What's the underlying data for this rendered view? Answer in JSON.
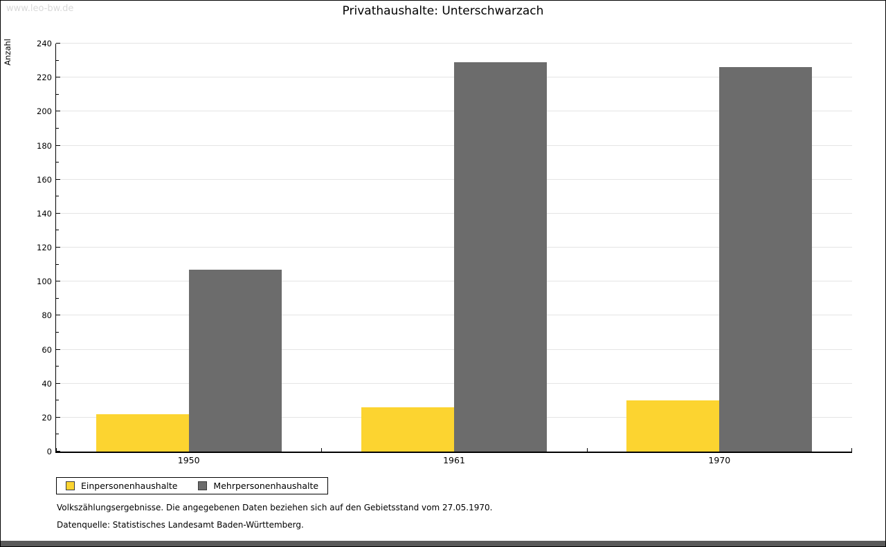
{
  "watermark": "www.leo-bw.de",
  "chart_data": {
    "type": "bar",
    "title": "Privathaushalte: Unterschwarzach",
    "ylabel": "Anzahl",
    "xlabel": "",
    "categories": [
      "1950",
      "1961",
      "1970"
    ],
    "series": [
      {
        "name": "Einpersonenhaushalte",
        "color": "#fcd430",
        "values": [
          22,
          26,
          30
        ]
      },
      {
        "name": "Mehrpersonenhaushalte",
        "color": "#6c6c6c",
        "values": [
          107,
          229,
          226
        ]
      }
    ],
    "ylim": [
      0,
      240
    ],
    "y_major_step": 20,
    "y_minor_step": 10,
    "grid": "horizontal-major-only",
    "grid_color": "#e4e4e4",
    "legend_position": "bottom-left"
  },
  "footnotes": [
    "Volkszählungsergebnisse. Die angegebenen Daten beziehen sich auf den Gebietsstand vom 27.05.1970.",
    "Datenquelle: Statistisches Landesamt Baden-Württemberg."
  ]
}
